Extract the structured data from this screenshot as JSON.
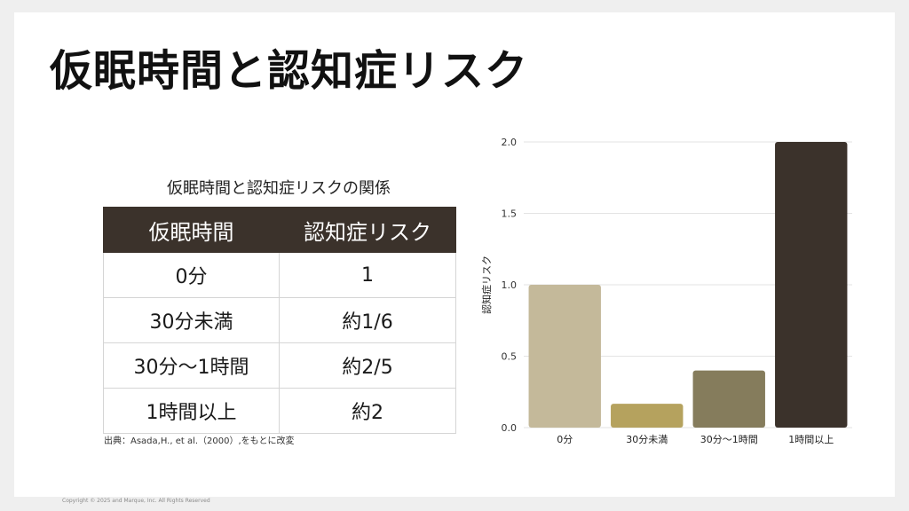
{
  "title": "仮眠時間と認知症リスク",
  "table": {
    "caption": "仮眠時間と認知症リスクの関係",
    "headers": [
      "仮眠時間",
      "認知症リスク"
    ],
    "rows": [
      [
        "0分",
        "1"
      ],
      [
        "30分未満",
        "約1/6"
      ],
      [
        "30分〜1時間",
        "約2/5"
      ],
      [
        "1時間以上",
        "約2"
      ]
    ]
  },
  "source": "出典：Asada,H., et al.（2000）,をもとに改変",
  "copyright": "Copyright © 2025 and Marque, Inc. All Rights Reserved",
  "chart_data": {
    "type": "bar",
    "categories": [
      "0分",
      "30分未満",
      "30分〜1時間",
      "1時間以上"
    ],
    "values": [
      1.0,
      0.167,
      0.4,
      2.0
    ],
    "colors": [
      "#c4b99a",
      "#b5a25e",
      "#857c5c",
      "#3b322b"
    ],
    "ylabel": "認知症リスク",
    "xlabel": "",
    "ylim": [
      0,
      2.0
    ],
    "yticks": [
      "0.0",
      "0.5",
      "1.0",
      "1.5",
      "2.0"
    ],
    "grid": true,
    "legend": "none"
  }
}
